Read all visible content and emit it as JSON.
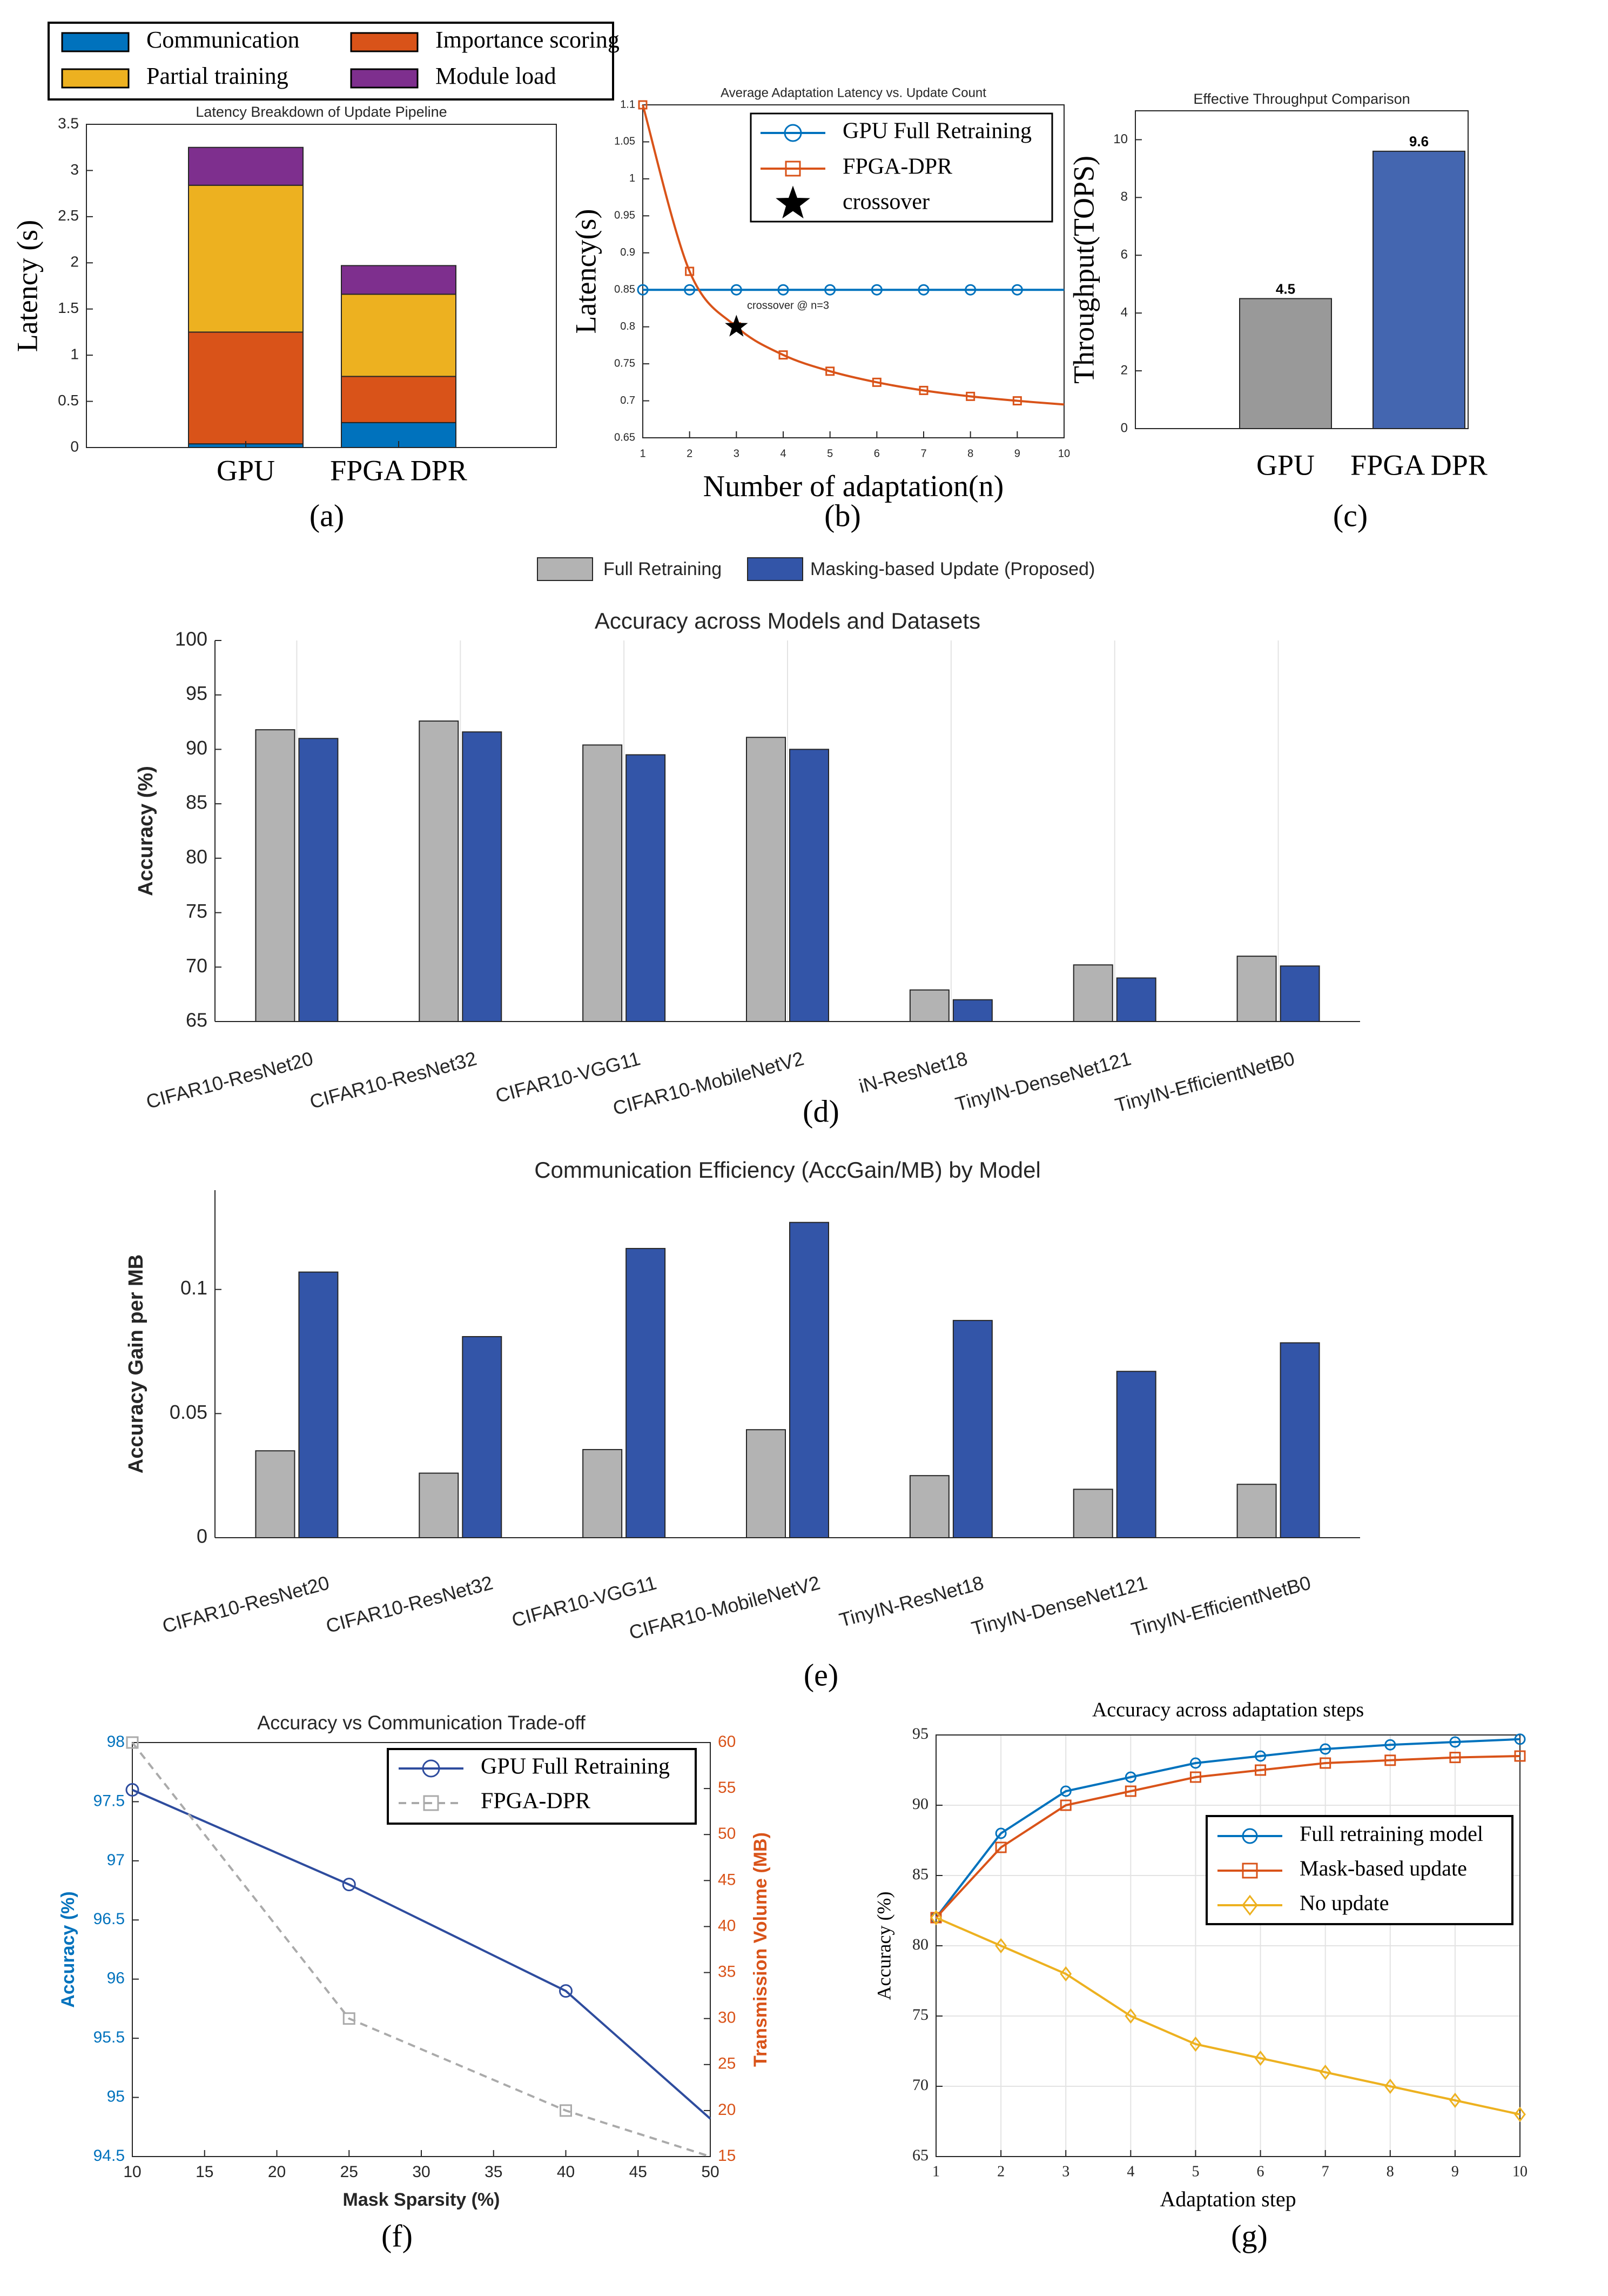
{
  "colors": {
    "communication": "#0072BD",
    "importance": "#D95319",
    "partial": "#EDB120",
    "module": "#7E2F8E",
    "gpu_line": "#0072BD",
    "fpga_line": "#D95319",
    "gray_bar": "#999999",
    "blue_bar_c": "#4466B0",
    "full_bar": "#B3B3B3",
    "mask_bar": "#3355A8",
    "f_line1": "#2E4C9E",
    "f_line2": "#AAAAAA",
    "f_left_axis": "#0072BD",
    "f_right_axis": "#D95319",
    "g_line1": "#0072BD",
    "g_line2": "#D95319",
    "g_line3": "#EDB120"
  },
  "panel_labels": [
    "(a)",
    "(b)",
    "(c)",
    "(d)",
    "(e)",
    "(f)",
    "(g)"
  ],
  "chart_data": [
    {
      "id": "a",
      "type": "bar",
      "stacked": true,
      "title": "Latency Breakdown of Update Pipeline",
      "ylabel": "Latency (s)",
      "xlabel": "",
      "categories": [
        "GPU",
        "FPGA DPR"
      ],
      "ylim": [
        0,
        3.5
      ],
      "yticks": [
        "0",
        "0.5",
        "1",
        "1.5",
        "2",
        "2.5",
        "3",
        "3.5"
      ],
      "legend_position": "top (outside, 2 columns)",
      "series": [
        {
          "name": "Communication",
          "values": [
            0.04,
            0.27
          ]
        },
        {
          "name": "Importance scoring",
          "values": [
            1.21,
            0.5
          ]
        },
        {
          "name": "Partial training",
          "values": [
            1.59,
            0.89
          ]
        },
        {
          "name": "Module load",
          "values": [
            0.41,
            0.31
          ]
        }
      ]
    },
    {
      "id": "b",
      "type": "line",
      "title": "Average Adaptation Latency vs. Update Count",
      "xlabel": "Number of adaptation(n)",
      "ylabel": "Latency(s)",
      "xlim": [
        1,
        10
      ],
      "ylim": [
        0.65,
        1.1
      ],
      "xticks": [
        "1",
        "2",
        "3",
        "4",
        "5",
        "6",
        "7",
        "8",
        "9",
        "10"
      ],
      "yticks": [
        "0.65",
        "0.7",
        "0.75",
        "0.8",
        "0.85",
        "0.9",
        "0.95",
        "1",
        "1.05",
        "1.1"
      ],
      "legend_position": "top-center",
      "series": [
        {
          "name": "GPU Full Retraining",
          "x": [
            1,
            2,
            3,
            4,
            5,
            6,
            7,
            8,
            9,
            10
          ],
          "values": [
            0.85,
            0.85,
            0.85,
            0.85,
            0.85,
            0.85,
            0.85,
            0.85,
            0.85,
            0.85
          ],
          "markers_at": [
            1,
            2,
            3,
            4,
            5,
            6,
            7,
            8,
            9
          ]
        },
        {
          "name": "FPGA-DPR",
          "x": [
            1,
            2,
            3,
            4,
            5,
            6,
            7,
            8,
            9,
            10
          ],
          "values": [
            1.1,
            0.875,
            0.8,
            0.762,
            0.74,
            0.725,
            0.714,
            0.706,
            0.7,
            0.695
          ],
          "markers_at": [
            1,
            2,
            3,
            4,
            5,
            6,
            7,
            8,
            9
          ]
        },
        {
          "name": "crossover",
          "x": [
            3
          ],
          "values": [
            0.8
          ]
        }
      ],
      "annotations": [
        "crossover @ n=3"
      ]
    },
    {
      "id": "c",
      "type": "bar",
      "title": "Effective Throughput Comparison",
      "ylabel": "Throughput(TOPS)",
      "xlabel": "",
      "categories": [
        "GPU",
        "FPGA DPR"
      ],
      "values": [
        4.5,
        9.6
      ],
      "data_labels": [
        "4.5",
        "9.6"
      ],
      "ylim": [
        0,
        11
      ],
      "yticks": [
        "0",
        "2",
        "4",
        "6",
        "8",
        "10"
      ]
    },
    {
      "id": "d",
      "type": "bar",
      "title": "Accuracy across Models and Datasets",
      "ylabel": "Accuracy (%)",
      "xlabel": "",
      "categories": [
        "CIFAR10-ResNet20",
        "CIFAR10-ResNet32",
        "CIFAR10-VGG11",
        "CIFAR10-MobileNetV2",
        "iN-ResNet18",
        "TinyIN-DenseNet121",
        "TinyIN-EfficientNetB0"
      ],
      "ylim": [
        65,
        100
      ],
      "yticks": [
        "65",
        "70",
        "75",
        "80",
        "85",
        "90",
        "95",
        "100"
      ],
      "legend_position": "top (outside, horizontal)",
      "series": [
        {
          "name": "Full Retraining",
          "values": [
            91.8,
            92.6,
            90.4,
            91.1,
            67.9,
            70.2,
            71.0
          ]
        },
        {
          "name": "Masking-based Update (Proposed)",
          "values": [
            91.0,
            91.6,
            89.5,
            90.0,
            67.0,
            69.0,
            70.1
          ]
        }
      ]
    },
    {
      "id": "e",
      "type": "bar",
      "title": "Communication Efficiency (AccGain/MB) by Model",
      "ylabel": "Accuracy Gain per MB",
      "xlabel": "",
      "categories": [
        "CIFAR10-ResNet20",
        "CIFAR10-ResNet32",
        "CIFAR10-VGG11",
        "CIFAR10-MobileNetV2",
        "TinyIN-ResNet18",
        "TinyIN-DenseNet121",
        "TinyIN-EfficientNetB0"
      ],
      "ylim": [
        0,
        0.14
      ],
      "yticks": [
        "0",
        "0.05",
        "0.1"
      ],
      "series": [
        {
          "name": "Full Retraining",
          "values": [
            0.035,
            0.026,
            0.0355,
            0.0435,
            0.025,
            0.0195,
            0.0215
          ]
        },
        {
          "name": "Masking-based Update (Proposed)",
          "values": [
            0.107,
            0.081,
            0.1165,
            0.127,
            0.0875,
            0.067,
            0.0785
          ]
        }
      ]
    },
    {
      "id": "f",
      "type": "line",
      "title": "Accuracy vs Communication Trade-off",
      "xlabel": "Mask Sparsity (%)",
      "ylabel": "Accuracy (%)",
      "ylabel_right": "Transmission Volume (MB)",
      "xlim": [
        10,
        50
      ],
      "ylim": [
        94.5,
        98
      ],
      "ylim_right": [
        15,
        60
      ],
      "xticks": [
        "10",
        "15",
        "20",
        "25",
        "30",
        "35",
        "40",
        "45",
        "50"
      ],
      "yticks": [
        "94.5",
        "95",
        "95.5",
        "96",
        "96.5",
        "97",
        "97.5",
        "98"
      ],
      "yticks_right": [
        "15",
        "20",
        "25",
        "30",
        "35",
        "40",
        "45",
        "50",
        "55",
        "60"
      ],
      "legend_position": "top-right",
      "series": [
        {
          "name": "GPU Full Retraining",
          "axis": "left",
          "x": [
            10,
            25,
            40,
            50
          ],
          "values": [
            97.6,
            96.8,
            95.9,
            94.82
          ],
          "markers_at": [
            10,
            25,
            40
          ]
        },
        {
          "name": "FPGA-DPR",
          "axis": "right",
          "x": [
            10,
            25,
            40,
            50
          ],
          "values": [
            60,
            30,
            20,
            15
          ],
          "markers_at": [
            10,
            25,
            40
          ]
        }
      ]
    },
    {
      "id": "g",
      "type": "line",
      "title": "Accuracy across adaptation steps",
      "xlabel": "Adaptation step",
      "ylabel": "Accuracy (%)",
      "xlim": [
        1,
        10
      ],
      "ylim": [
        65,
        95
      ],
      "xticks": [
        "1",
        "2",
        "3",
        "4",
        "5",
        "6",
        "7",
        "8",
        "9",
        "10"
      ],
      "yticks": [
        "65",
        "70",
        "75",
        "80",
        "85",
        "90",
        "95"
      ],
      "legend_position": "center-right",
      "series": [
        {
          "name": "Full retraining model",
          "x": [
            1,
            2,
            3,
            4,
            5,
            6,
            7,
            8,
            9,
            10
          ],
          "values": [
            82,
            88,
            91,
            92,
            93,
            93.5,
            94,
            94.3,
            94.5,
            94.7
          ]
        },
        {
          "name": "Mask-based update",
          "x": [
            1,
            2,
            3,
            4,
            5,
            6,
            7,
            8,
            9,
            10
          ],
          "values": [
            82,
            87,
            90,
            91,
            92,
            92.5,
            93,
            93.2,
            93.4,
            93.5
          ]
        },
        {
          "name": "No update",
          "x": [
            1,
            2,
            3,
            4,
            5,
            6,
            7,
            8,
            9,
            10
          ],
          "values": [
            82,
            80,
            78,
            75,
            73,
            72,
            71,
            70,
            69,
            68
          ]
        }
      ]
    }
  ]
}
